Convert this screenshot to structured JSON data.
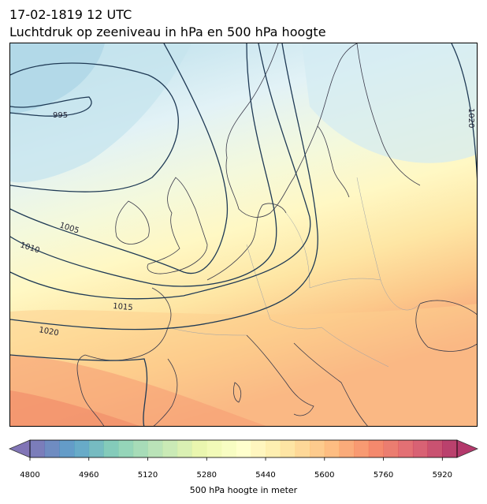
{
  "title": {
    "line1": "17-02-1819 12 UTC",
    "line2": "Luchtdruk op zeeniveau in hPa en 500 hPa hoogte"
  },
  "map": {
    "region": "Europe",
    "isobar_labels": [
      "995",
      "1005",
      "1010",
      "1015",
      "1020",
      "1020"
    ],
    "colors": {
      "land_outline": "#3a3a4a",
      "border": "#9aa0a8",
      "isobar": "#1f3a55"
    }
  },
  "colorbar": {
    "label": "500 hPa hoogte in meter",
    "ticks": [
      "4800",
      "4960",
      "5120",
      "5280",
      "5440",
      "5600",
      "5760",
      "5920"
    ],
    "min": 4800,
    "max": 5960,
    "step": 40,
    "colormap": [
      "#5e4fa2",
      "#3288bd",
      "#66c2a5",
      "#abdda4",
      "#e6f598",
      "#ffffbf",
      "#fee08b",
      "#fdae61",
      "#f46d43",
      "#d53e4f",
      "#9e0142"
    ],
    "extend": "both"
  }
}
